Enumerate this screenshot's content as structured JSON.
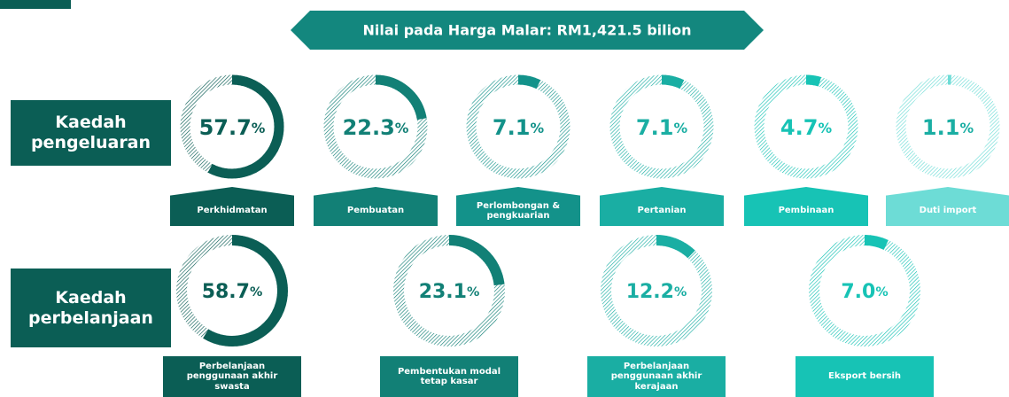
{
  "header": {
    "title": "Nilai pada Harga Malar: RM1,421.5 bilion"
  },
  "unit": "%",
  "rows": [
    {
      "label": "Kaedah pengeluaran",
      "items": [
        {
          "value": 57.7,
          "label": "Perkhidmatan",
          "color": "#0b5e55"
        },
        {
          "value": 22.3,
          "label": "Pembuatan",
          "color": "#128076"
        },
        {
          "value": 7.1,
          "label": "Perlombongan & pengkuarian",
          "color": "#13928a"
        },
        {
          "value": 7.1,
          "label": "Pertanian",
          "color": "#1aaea3"
        },
        {
          "value": 4.7,
          "label": "Pembinaan",
          "color": "#17c3b5"
        },
        {
          "value": 1.1,
          "label": "Duti import",
          "color": "#6ddcd6"
        }
      ]
    },
    {
      "label": "Kaedah perbelanjaan",
      "items": [
        {
          "value": 58.7,
          "label": "Perbelanjaan penggunaan akhir swasta",
          "color": "#0b5e55"
        },
        {
          "value": 23.1,
          "label": "Pembentukan modal tetap kasar",
          "color": "#128076"
        },
        {
          "value": 12.2,
          "label": "Perbelanjaan penggunaan akhir kerajaan",
          "color": "#1aaea3"
        },
        {
          "value": 7.0,
          "value_label": "7.0",
          "label": "Eksport bersih",
          "color": "#17c3b5"
        }
      ]
    }
  ]
}
